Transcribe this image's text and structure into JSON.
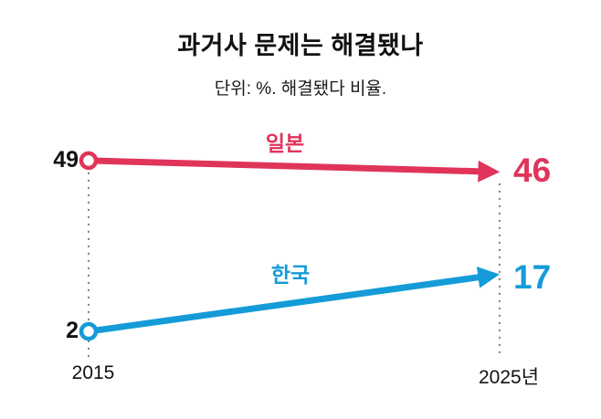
{
  "title": "과거사 문제는 해결됐나",
  "subtitle": "단위: %. 해결됐다 비율.",
  "chart_data": {
    "type": "line",
    "x": [
      2015,
      2025
    ],
    "x_tick_labels": [
      "2015",
      "2025년"
    ],
    "series": [
      {
        "name": "일본",
        "values": [
          49,
          46
        ],
        "color": "#e0345b"
      },
      {
        "name": "한국",
        "values": [
          2,
          17
        ],
        "color": "#149bd8"
      }
    ],
    "ylim": [
      0,
      55
    ],
    "unit": "%",
    "grid": "dashed-vertical-at-x-ticks",
    "legend_position": "inline-above-lines",
    "marker_start": "open-circle",
    "marker_end": "arrowhead"
  }
}
